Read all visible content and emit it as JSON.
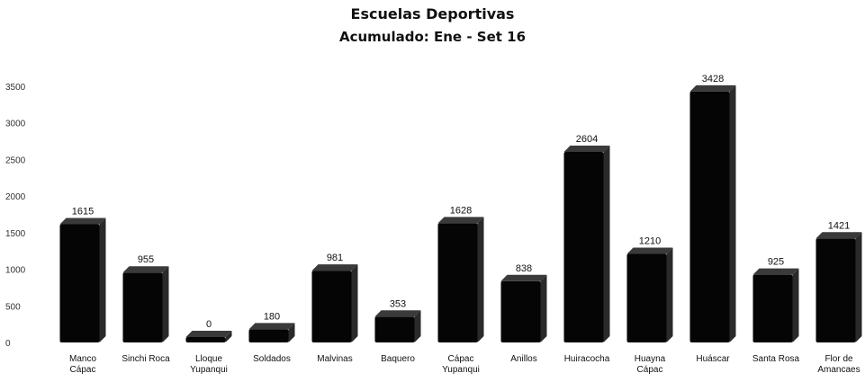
{
  "chart_data": {
    "type": "bar",
    "title": "Escuelas Deportivas",
    "subtitle": "Acumulado: Ene - Set 16",
    "categories": [
      [
        "Manco",
        "Cápac"
      ],
      [
        "Sinchi Roca"
      ],
      [
        "Lloque",
        "Yupanqui"
      ],
      [
        "Soldados"
      ],
      [
        "Malvinas"
      ],
      [
        "Baquero"
      ],
      [
        "Cápac",
        "Yupanqui"
      ],
      [
        "Anillos"
      ],
      [
        "Huiracocha"
      ],
      [
        "Huayna",
        "Cápac"
      ],
      [
        "Huáscar"
      ],
      [
        "Santa Rosa"
      ],
      [
        "Flor de",
        "Amancaes"
      ]
    ],
    "values": [
      1615,
      955,
      0,
      180,
      981,
      353,
      1628,
      838,
      2604,
      1210,
      3428,
      925,
      1421
    ],
    "y_ticks": [
      "0",
      "500",
      "1000",
      "1500",
      "2000",
      "2500",
      "3000",
      "3500"
    ],
    "ylim": [
      0,
      3500
    ],
    "bar_color": "#050505",
    "bar_side_color": "#2a2a2a",
    "bar_top_color": "#3a3a3a",
    "grid": false,
    "legend": "none"
  }
}
